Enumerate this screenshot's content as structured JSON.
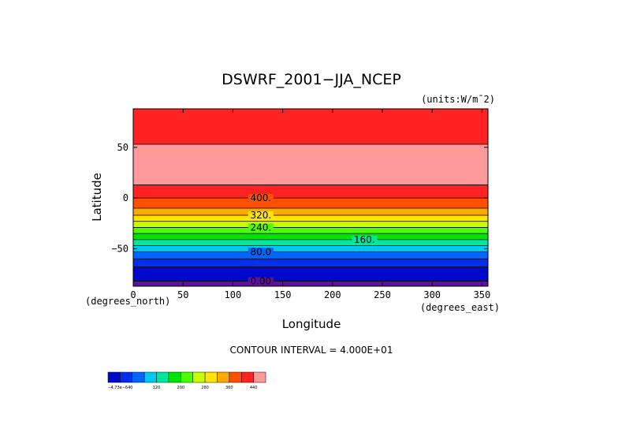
{
  "chart_data": {
    "type": "contour",
    "title": "DSWRF_2001−JJA_NCEP",
    "units_label": "(units:W/m¯2)",
    "xlabel": "Longitude",
    "ylabel": "Latitude",
    "x_unit_label": "(degrees_east)",
    "y_unit_label": "(degrees_north)",
    "xlim": [
      0,
      356
    ],
    "ylim": [
      -87,
      88
    ],
    "x_ticks": [
      0,
      50,
      100,
      150,
      200,
      250,
      300,
      350
    ],
    "x_tick_labels": [
      "0",
      "50",
      "100",
      "150",
      "200",
      "250",
      "300",
      "350"
    ],
    "y_ticks": [
      50,
      0,
      -50
    ],
    "y_tick_labels": [
      "50",
      "0",
      "−50"
    ],
    "contour_interval_text": "CONTOUR INTERVAL = 4.000E+01",
    "bands": [
      {
        "lat_top": 88,
        "lat_bottom": 53,
        "color": "#ff2222"
      },
      {
        "lat_top": 53,
        "lat_bottom": 13,
        "color": "#ff9a9a"
      },
      {
        "lat_top": 13,
        "lat_bottom": 0,
        "color": "#ff2222"
      },
      {
        "lat_top": 0,
        "lat_bottom": -10,
        "color": "#ff5000"
      },
      {
        "lat_top": -10,
        "lat_bottom": -17,
        "color": "#ffa800"
      },
      {
        "lat_top": -17,
        "lat_bottom": -23,
        "color": "#ffe500"
      },
      {
        "lat_top": -23,
        "lat_bottom": -29,
        "color": "#c8ff00"
      },
      {
        "lat_top": -29,
        "lat_bottom": -35,
        "color": "#4cff00"
      },
      {
        "lat_top": -35,
        "lat_bottom": -41,
        "color": "#00e400"
      },
      {
        "lat_top": -41,
        "lat_bottom": -47,
        "color": "#00e6a0"
      },
      {
        "lat_top": -47,
        "lat_bottom": -53,
        "color": "#00c8f0"
      },
      {
        "lat_top": -53,
        "lat_bottom": -60,
        "color": "#0066ff"
      },
      {
        "lat_top": -60,
        "lat_bottom": -68,
        "color": "#0030ee"
      },
      {
        "lat_top": -68,
        "lat_bottom": -82,
        "color": "#0008cc"
      },
      {
        "lat_top": -82,
        "lat_bottom": -87,
        "color": "#6010a0"
      }
    ],
    "contour_lines": [
      0,
      -10,
      -17,
      -23,
      -29,
      -35,
      -41,
      -47,
      -53,
      -60,
      -68,
      -82
    ],
    "contour_labels": [
      {
        "text": "400.",
        "lon": 128,
        "lat": 0
      },
      {
        "text": "320.",
        "lon": 128,
        "lat": -17
      },
      {
        "text": "240.",
        "lon": 128,
        "lat": -29
      },
      {
        "text": "160.",
        "lon": 232,
        "lat": -41
      },
      {
        "text": "80.0",
        "lon": 128,
        "lat": -53
      },
      {
        "text": "0.00",
        "lon": 128,
        "lat": -82
      }
    ],
    "colorbar": {
      "colors": [
        "#0008cc",
        "#0030ee",
        "#0066ff",
        "#00c8f0",
        "#00e6a0",
        "#00e400",
        "#4cff00",
        "#c8ff00",
        "#ffe500",
        "#ffa800",
        "#ff5000",
        "#ff2222",
        "#ff9a9a"
      ],
      "labels": [
        {
          "text": "−4.73e−640",
          "index": 0
        },
        {
          "text": "120",
          "index": 3
        },
        {
          "text": "200",
          "index": 5
        },
        {
          "text": "280",
          "index": 7
        },
        {
          "text": "360",
          "index": 9
        },
        {
          "text": "440",
          "index": 11
        }
      ]
    }
  }
}
